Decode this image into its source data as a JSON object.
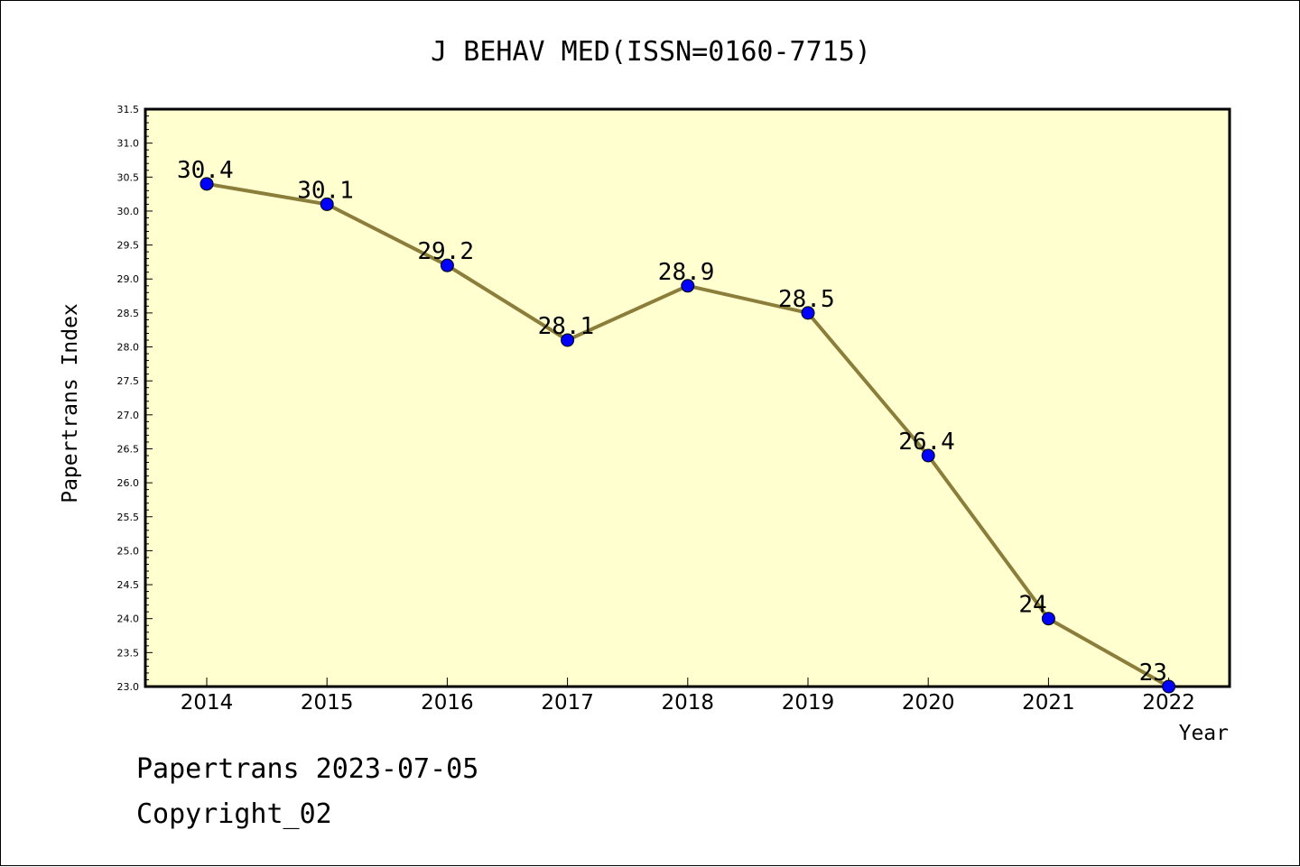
{
  "chart_data": {
    "type": "line",
    "title": "J BEHAV MED(ISSN=0160-7715)",
    "xlabel": "Year",
    "ylabel": "Papertrans Index",
    "categories": [
      "2014",
      "2015",
      "2016",
      "2017",
      "2018",
      "2019",
      "2020",
      "2021",
      "2022"
    ],
    "series": [
      {
        "values": [
          30.4,
          30.1,
          29.2,
          28.1,
          28.9,
          28.5,
          26.4,
          24,
          23
        ],
        "data_labels": [
          "30.4",
          "30.1",
          "29.2",
          "28.1",
          "28.9",
          "28.5",
          "26.4",
          "24",
          "23"
        ]
      }
    ],
    "ylim": [
      23.0,
      31.5
    ],
    "yticks": [
      "23.0",
      "23.5",
      "24.0",
      "24.5",
      "25.0",
      "25.5",
      "26.0",
      "26.5",
      "27.0",
      "27.5",
      "28.0",
      "28.5",
      "29.0",
      "29.5",
      "30.0",
      "30.5",
      "31.0",
      "31.5"
    ],
    "grid": false,
    "colors": {
      "plot_background": "#ffffd0",
      "line": "#8b7d3a",
      "marker": "#0000ff"
    }
  },
  "footer": {
    "source": "Papertrans 2023-07-05",
    "copyright": "Copyright_02"
  }
}
